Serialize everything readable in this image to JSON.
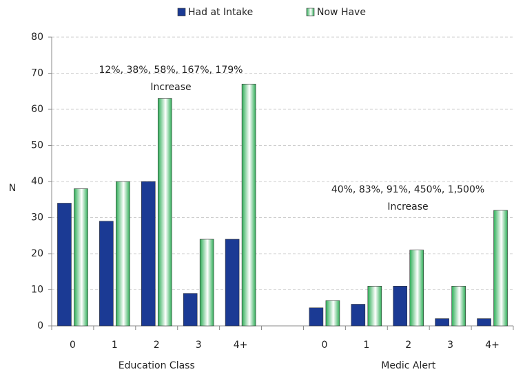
{
  "chart_data": {
    "type": "bar",
    "categories": [
      "0",
      "1",
      "2",
      "3",
      "4+",
      null,
      "0",
      "1",
      "2",
      "3",
      "4+"
    ],
    "groups": [
      {
        "label": "Education Class",
        "from": 0,
        "to": 4
      },
      {
        "label": "Medic Alert",
        "from": 6,
        "to": 10
      }
    ],
    "series": [
      {
        "name": "Had at Intake",
        "color": "#1b3a94",
        "values": [
          34,
          29,
          40,
          9,
          24,
          null,
          5,
          6,
          11,
          2,
          2
        ]
      },
      {
        "name": "Now Have",
        "color": "#2eae57",
        "gradient": true,
        "values": [
          38,
          40,
          63,
          24,
          67,
          null,
          7,
          11,
          21,
          11,
          32
        ]
      }
    ],
    "ylabel": "N",
    "ylim": [
      0,
      80
    ],
    "yticks": [
      0,
      10,
      20,
      30,
      40,
      50,
      60,
      70,
      80
    ],
    "grid": true,
    "annotations": [
      {
        "lines": [
          "12%, 38%, 58%, 167%, 179%",
          "Increase"
        ],
        "group": 0
      },
      {
        "lines": [
          "40%, 83%, 91%, 450%, 1,500%",
          "Increase"
        ],
        "group": 1
      }
    ]
  }
}
